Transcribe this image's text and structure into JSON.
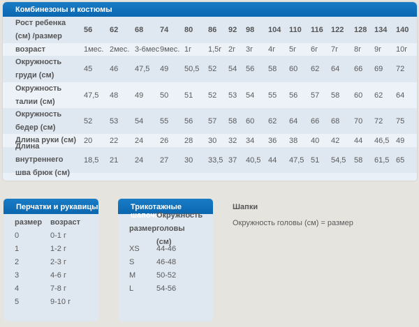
{
  "main_table": {
    "title": "Комбинезоны и костюмы",
    "rows": [
      {
        "label": "Рост ребенка (см) /размер",
        "values": [
          "56",
          "62",
          "68",
          "74",
          "80",
          "86",
          "92",
          "98",
          "104",
          "110",
          "116",
          "122",
          "128",
          "134",
          "140"
        ]
      },
      {
        "label": "возраст",
        "values": [
          "1мес.",
          "2мес.",
          "3-6мес",
          "9мес.",
          "1г",
          "1,5г",
          "2г",
          "3г",
          "4г",
          "5г",
          "6г",
          "7г",
          "8г",
          "9г",
          "10г"
        ]
      },
      {
        "label": "Окружность груди (см)",
        "values": [
          "45",
          "46",
          "47,5",
          "49",
          "50,5",
          "52",
          "54",
          "56",
          "58",
          "60",
          "62",
          "64",
          "66",
          "69",
          "72"
        ]
      },
      {
        "label": "Окружность талии (см)",
        "values": [
          "47,5",
          "48",
          "49",
          "50",
          "51",
          "52",
          "53",
          "54",
          "55",
          "56",
          "57",
          "58",
          "60",
          "62",
          "64"
        ]
      },
      {
        "label": "Окружность бедер (см)",
        "values": [
          "52",
          "53",
          "54",
          "55",
          "56",
          "57",
          "58",
          "60",
          "62",
          "64",
          "66",
          "68",
          "70",
          "72",
          "75"
        ]
      },
      {
        "label": "Длина руки (см)",
        "values": [
          "20",
          "22",
          "24",
          "26",
          "28",
          "30",
          "32",
          "34",
          "36",
          "38",
          "40",
          "42",
          "44",
          "46,5",
          "49"
        ]
      },
      {
        "label": "Длина внутреннего шва брюк (см)",
        "values": [
          "18,5",
          "21",
          "24",
          "27",
          "30",
          "33,5",
          "37",
          "40,5",
          "44",
          "47,5",
          "51",
          "54,5",
          "58",
          "61,5",
          "65"
        ]
      }
    ]
  },
  "gloves": {
    "title": "Перчатки и рукавицы",
    "headers": [
      "размер",
      "возраст"
    ],
    "rows": [
      [
        "0",
        "0-1 г"
      ],
      [
        "1",
        "1-2 г"
      ],
      [
        "2",
        "2-3 г"
      ],
      [
        "3",
        "4-6 г"
      ],
      [
        "4",
        "7-8 г"
      ],
      [
        "5",
        "9-10 г"
      ]
    ]
  },
  "hats": {
    "title": "Трикотажные шапочки",
    "headers": [
      "размер",
      "Окружность головы (см)"
    ],
    "rows": [
      [
        "XS",
        "44-46"
      ],
      [
        "S",
        "46-48"
      ],
      [
        "M",
        "50-52"
      ],
      [
        "L",
        "54-56"
      ]
    ]
  },
  "caps": {
    "title": "Шапки",
    "text": "Окружность головы (см) = размер"
  },
  "colors": {
    "header_blue": "#0a6db5",
    "row_dark": "#dfe7f1",
    "row_light": "#edf2f8",
    "background": "#e6e4df"
  }
}
